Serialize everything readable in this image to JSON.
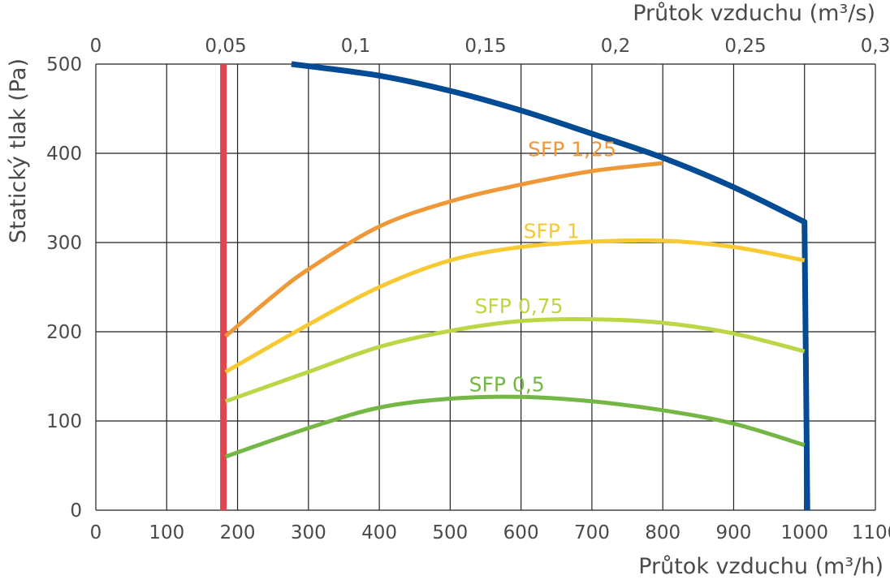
{
  "chart_data": {
    "type": "line",
    "title": "",
    "xlabel": "Průtok vzduchu (m³/h)",
    "x2label": "Průtok vzduchu (m³/s)",
    "ylabel": "Statický tlak (Pa)",
    "xlim": [
      0,
      1100
    ],
    "ylim": [
      0,
      500
    ],
    "x2lim": [
      0,
      0.3
    ],
    "grid": true,
    "xticks": [
      0,
      100,
      200,
      300,
      400,
      500,
      600,
      700,
      800,
      900,
      1000,
      1100
    ],
    "yticks": [
      0,
      100,
      200,
      300,
      400,
      500
    ],
    "x2ticks": [
      {
        "value": 0,
        "label": "0"
      },
      {
        "value": 0.05,
        "label": "0,05"
      },
      {
        "value": 0.1,
        "label": "0,1"
      },
      {
        "value": 0.15,
        "label": "0,15"
      },
      {
        "value": 0.2,
        "label": "0,2"
      },
      {
        "value": 0.25,
        "label": "0,25"
      },
      {
        "value": 0.3,
        "label": "0,3"
      }
    ],
    "vertical_line": {
      "x": 180,
      "color": "#e0464f"
    },
    "series": [
      {
        "key": "fan-curve",
        "color": "#034b94",
        "width": 7,
        "points": [
          [
            276,
            500
          ],
          [
            400,
            487
          ],
          [
            500,
            470
          ],
          [
            600,
            448
          ],
          [
            700,
            422
          ],
          [
            800,
            395
          ],
          [
            900,
            362
          ],
          [
            1000,
            323
          ],
          [
            1004,
            0
          ]
        ]
      },
      {
        "key": "sfp-125",
        "name": "SFP 1,25",
        "color": "#ee9838",
        "width": 5,
        "label_pos": [
          672,
          397
        ],
        "points": [
          [
            183,
            195
          ],
          [
            250,
            240
          ],
          [
            300,
            270
          ],
          [
            400,
            318
          ],
          [
            500,
            346
          ],
          [
            600,
            365
          ],
          [
            700,
            380
          ],
          [
            800,
            389
          ]
        ]
      },
      {
        "key": "sfp-1",
        "name": "SFP 1",
        "color": "#f7c933",
        "width": 5,
        "label_pos": [
          643,
          305
        ],
        "points": [
          [
            183,
            155
          ],
          [
            300,
            208
          ],
          [
            400,
            250
          ],
          [
            500,
            280
          ],
          [
            600,
            295
          ],
          [
            700,
            301
          ],
          [
            800,
            302
          ],
          [
            900,
            295
          ],
          [
            1000,
            280
          ]
        ]
      },
      {
        "key": "sfp-075",
        "name": "SFP 0,75",
        "color": "#bbd646",
        "width": 5,
        "label_pos": [
          597,
          221
        ],
        "points": [
          [
            183,
            122
          ],
          [
            300,
            155
          ],
          [
            400,
            183
          ],
          [
            500,
            201
          ],
          [
            600,
            212
          ],
          [
            700,
            214
          ],
          [
            800,
            210
          ],
          [
            900,
            198
          ],
          [
            1000,
            178
          ]
        ]
      },
      {
        "key": "sfp-05",
        "name": "SFP 0,5",
        "color": "#74b744",
        "width": 5,
        "label_pos": [
          580,
          133
        ],
        "points": [
          [
            183,
            60
          ],
          [
            300,
            92
          ],
          [
            400,
            115
          ],
          [
            500,
            125
          ],
          [
            600,
            127
          ],
          [
            700,
            122
          ],
          [
            800,
            112
          ],
          [
            900,
            97
          ],
          [
            1000,
            73
          ]
        ]
      }
    ]
  }
}
